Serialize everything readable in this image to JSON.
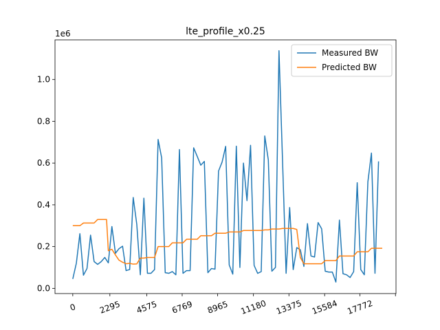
{
  "chart_data": {
    "type": "line",
    "title": "lte_profile_x0.25",
    "xlabel": "",
    "ylabel": "",
    "y_offset_text": "1e6",
    "xlim": [
      -1100,
      20000
    ],
    "ylim": [
      -0.025,
      1.19
    ],
    "x_ticks": [
      0,
      2295,
      4575,
      6769,
      8965,
      11180,
      13375,
      15584,
      17772
    ],
    "x_tick_labels": [
      "0",
      "2295",
      "4575",
      "6769",
      "8965",
      "11180",
      "13375",
      "15584",
      "17772"
    ],
    "y_ticks": [
      0.0,
      0.2,
      0.4,
      0.6,
      0.8,
      1.0
    ],
    "y_tick_labels": [
      "0.0",
      "0.2",
      "0.4",
      "0.6",
      "0.8",
      "1.0"
    ],
    "grid": false,
    "legend_position": "top-right",
    "series": [
      {
        "name": "Measured BW",
        "color": "#1f77b4",
        "points": [
          [
            0,
            0.045
          ],
          [
            220,
            0.12
          ],
          [
            440,
            0.262
          ],
          [
            660,
            0.063
          ],
          [
            880,
            0.095
          ],
          [
            1100,
            0.255
          ],
          [
            1320,
            0.128
          ],
          [
            1540,
            0.115
          ],
          [
            1760,
            0.128
          ],
          [
            1980,
            0.148
          ],
          [
            2200,
            0.122
          ],
          [
            2420,
            0.296
          ],
          [
            2640,
            0.168
          ],
          [
            2860,
            0.19
          ],
          [
            3080,
            0.202
          ],
          [
            3300,
            0.085
          ],
          [
            3520,
            0.09
          ],
          [
            3740,
            0.435
          ],
          [
            3960,
            0.307
          ],
          [
            4180,
            0.065
          ],
          [
            4400,
            0.432
          ],
          [
            4620,
            0.072
          ],
          [
            4840,
            0.072
          ],
          [
            5060,
            0.09
          ],
          [
            5280,
            0.713
          ],
          [
            5500,
            0.625
          ],
          [
            5720,
            0.075
          ],
          [
            5940,
            0.072
          ],
          [
            6160,
            0.08
          ],
          [
            6380,
            0.065
          ],
          [
            6600,
            0.665
          ],
          [
            6820,
            0.072
          ],
          [
            7040,
            0.085
          ],
          [
            7260,
            0.085
          ],
          [
            7480,
            0.673
          ],
          [
            7700,
            0.632
          ],
          [
            7920,
            0.59
          ],
          [
            8140,
            0.608
          ],
          [
            8360,
            0.075
          ],
          [
            8580,
            0.095
          ],
          [
            8800,
            0.092
          ],
          [
            9020,
            0.562
          ],
          [
            9240,
            0.605
          ],
          [
            9460,
            0.68
          ],
          [
            9680,
            0.112
          ],
          [
            9900,
            0.068
          ],
          [
            10120,
            0.681
          ],
          [
            10340,
            0.1
          ],
          [
            10560,
            0.6
          ],
          [
            10780,
            0.42
          ],
          [
            11000,
            0.685
          ],
          [
            11220,
            0.11
          ],
          [
            11440,
            0.072
          ],
          [
            11660,
            0.08
          ],
          [
            11880,
            0.73
          ],
          [
            12100,
            0.615
          ],
          [
            12320,
            0.082
          ],
          [
            12540,
            0.1
          ],
          [
            12760,
            1.138
          ],
          [
            12980,
            0.61
          ],
          [
            13200,
            0.072
          ],
          [
            13420,
            0.387
          ],
          [
            13640,
            0.09
          ],
          [
            13860,
            0.195
          ],
          [
            14080,
            0.185
          ],
          [
            14300,
            0.105
          ],
          [
            14520,
            0.31
          ],
          [
            14740,
            0.155
          ],
          [
            14960,
            0.15
          ],
          [
            15180,
            0.315
          ],
          [
            15400,
            0.285
          ],
          [
            15620,
            0.082
          ],
          [
            15840,
            0.078
          ],
          [
            16060,
            0.078
          ],
          [
            16280,
            0.03
          ],
          [
            16500,
            0.327
          ],
          [
            16720,
            0.07
          ],
          [
            16940,
            0.065
          ],
          [
            17160,
            0.052
          ],
          [
            17380,
            0.08
          ],
          [
            17600,
            0.506
          ],
          [
            17820,
            0.09
          ],
          [
            18040,
            0.065
          ],
          [
            18260,
            0.51
          ],
          [
            18480,
            0.648
          ],
          [
            18700,
            0.072
          ],
          [
            18920,
            0.608
          ]
        ]
      },
      {
        "name": "Predicted BW",
        "color": "#ff7f0e",
        "points": [
          [
            0,
            0.3
          ],
          [
            440,
            0.3
          ],
          [
            660,
            0.313
          ],
          [
            1320,
            0.313
          ],
          [
            1540,
            0.33
          ],
          [
            2090,
            0.33
          ],
          [
            2200,
            0.18
          ],
          [
            2420,
            0.187
          ],
          [
            2640,
            0.16
          ],
          [
            2860,
            0.135
          ],
          [
            3080,
            0.125
          ],
          [
            3300,
            0.118
          ],
          [
            3520,
            0.12
          ],
          [
            3740,
            0.116
          ],
          [
            3960,
            0.117
          ],
          [
            4180,
            0.145
          ],
          [
            4400,
            0.145
          ],
          [
            4620,
            0.148
          ],
          [
            4840,
            0.148
          ],
          [
            5060,
            0.148
          ],
          [
            5280,
            0.2
          ],
          [
            5940,
            0.2
          ],
          [
            6160,
            0.218
          ],
          [
            6820,
            0.218
          ],
          [
            7040,
            0.235
          ],
          [
            7700,
            0.235
          ],
          [
            7920,
            0.252
          ],
          [
            8580,
            0.252
          ],
          [
            8800,
            0.264
          ],
          [
            9460,
            0.264
          ],
          [
            9680,
            0.27
          ],
          [
            10340,
            0.27
          ],
          [
            10560,
            0.277
          ],
          [
            11660,
            0.277
          ],
          [
            11880,
            0.28
          ],
          [
            12100,
            0.28
          ],
          [
            12320,
            0.284
          ],
          [
            12760,
            0.284
          ],
          [
            12980,
            0.287
          ],
          [
            13640,
            0.287
          ],
          [
            13860,
            0.282
          ],
          [
            14080,
            0.148
          ],
          [
            14300,
            0.118
          ],
          [
            15400,
            0.118
          ],
          [
            15620,
            0.133
          ],
          [
            16280,
            0.133
          ],
          [
            16500,
            0.155
          ],
          [
            17380,
            0.155
          ],
          [
            17600,
            0.175
          ],
          [
            18260,
            0.175
          ],
          [
            18480,
            0.192
          ],
          [
            19150,
            0.192
          ]
        ]
      }
    ]
  }
}
